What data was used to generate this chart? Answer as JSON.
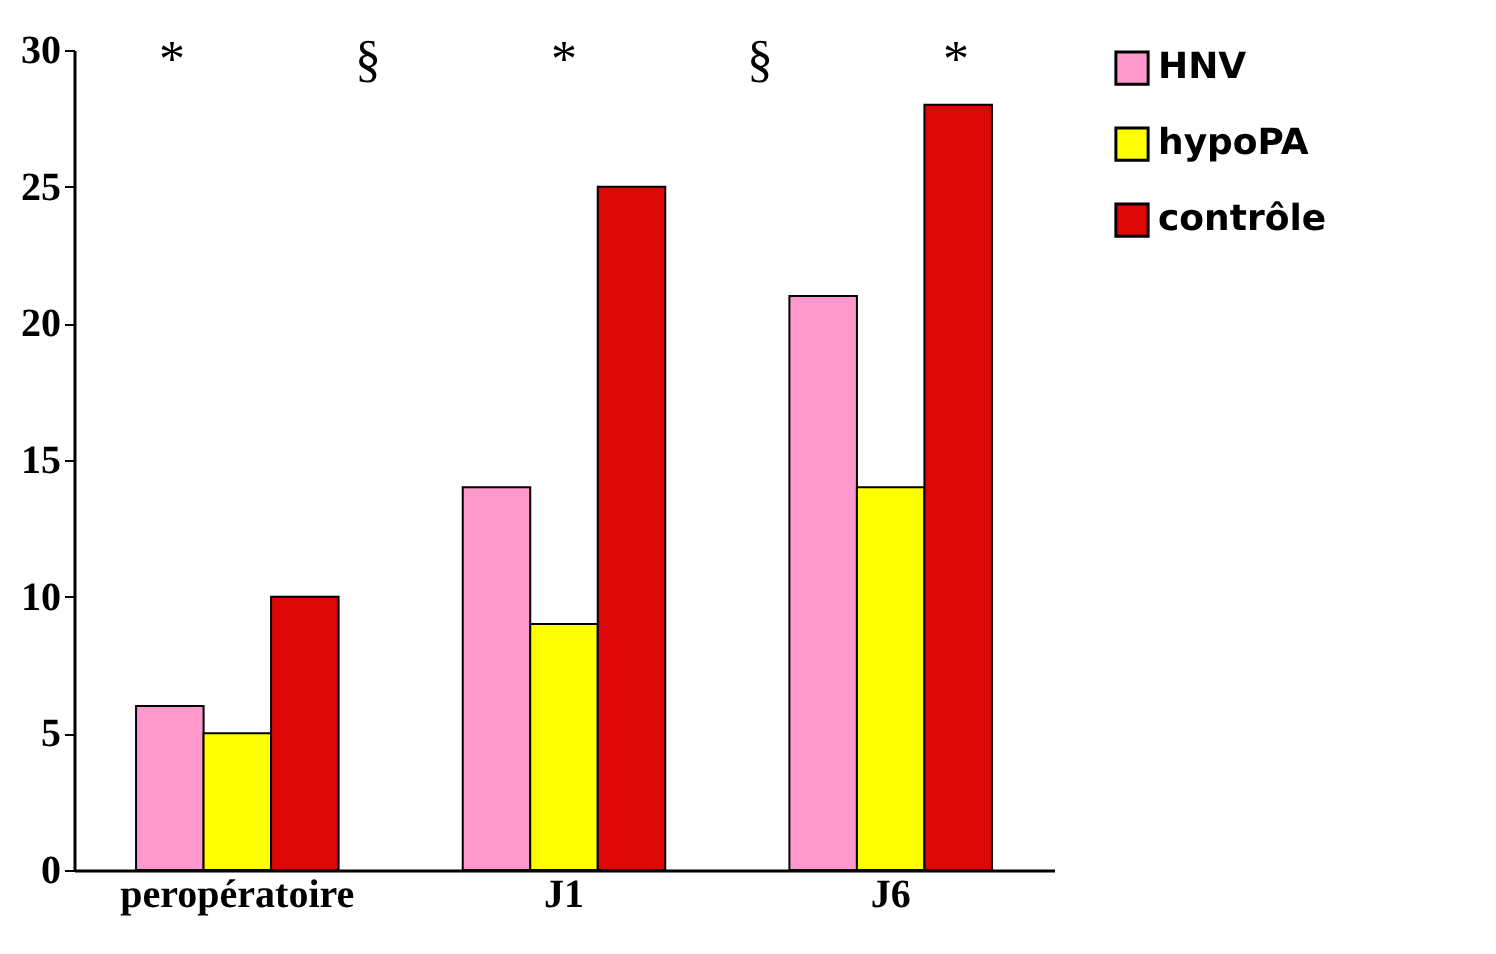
{
  "chart_data": {
    "type": "bar",
    "categories": [
      "peropératoire",
      "J1",
      "J6"
    ],
    "series": [
      {
        "name": "HNV",
        "color": "#ff99cc",
        "values": [
          6,
          14,
          21
        ]
      },
      {
        "name": "hypoPA",
        "color": "#ffff00",
        "values": [
          5,
          9,
          14
        ]
      },
      {
        "name": "contrôle",
        "color": "#dd0806",
        "values": [
          10,
          25,
          28
        ]
      }
    ],
    "ylim": [
      0,
      30
    ],
    "yticks": [
      0,
      5,
      10,
      15,
      20,
      25,
      30
    ],
    "grid": false,
    "legend": "right",
    "annotations": [
      "*",
      "§",
      "*",
      "§",
      "*"
    ]
  }
}
